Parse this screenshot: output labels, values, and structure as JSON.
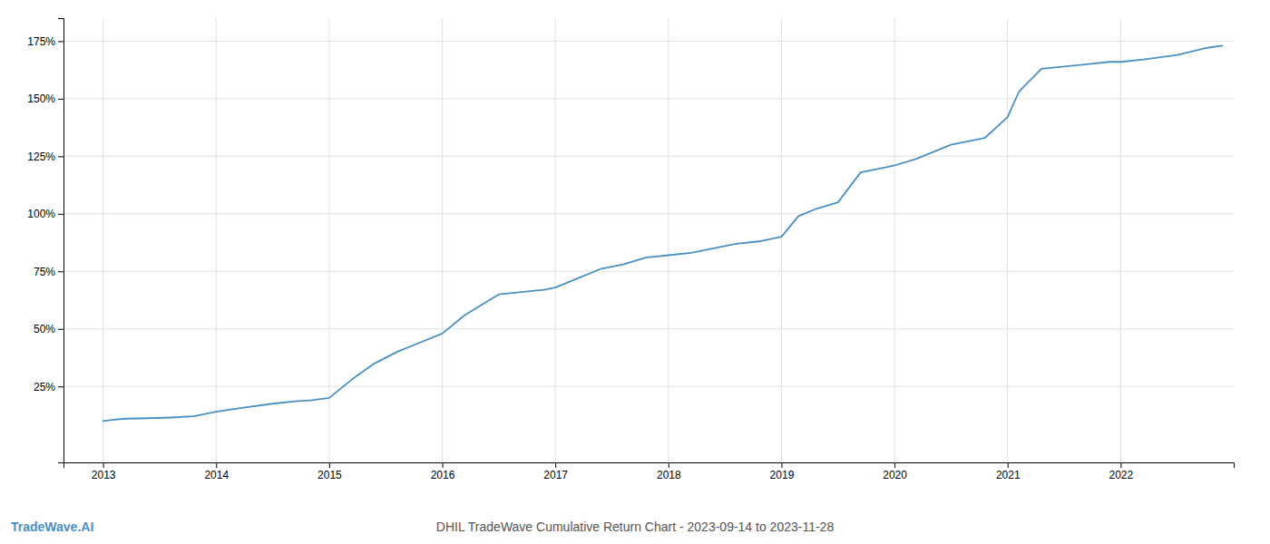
{
  "chart_data": {
    "type": "line",
    "title": "DHIL TradeWave Cumulative Return Chart - 2023-09-14 to 2023-11-28",
    "annotations": [
      "TradeWave.AI"
    ],
    "color": "#4a90c4",
    "x": [
      2013.0,
      2013.08,
      2013.2,
      2013.4,
      2013.6,
      2013.8,
      2014.0,
      2014.2,
      2014.5,
      2014.7,
      2014.85,
      2015.0,
      2015.2,
      2015.4,
      2015.6,
      2015.8,
      2016.0,
      2016.2,
      2016.4,
      2016.5,
      2016.7,
      2016.9,
      2017.0,
      2017.2,
      2017.4,
      2017.6,
      2017.8,
      2018.0,
      2018.2,
      2018.4,
      2018.6,
      2018.8,
      2019.0,
      2019.05,
      2019.15,
      2019.3,
      2019.5,
      2019.7,
      2019.9,
      2020.0,
      2020.2,
      2020.5,
      2020.8,
      2021.0,
      2021.1,
      2021.3,
      2021.5,
      2021.7,
      2021.9,
      2022.0,
      2022.2,
      2022.5,
      2022.75,
      2022.9
    ],
    "values": [
      10,
      10.5,
      11,
      11.2,
      11.5,
      12,
      14,
      15.5,
      17.5,
      18.5,
      19,
      20,
      28,
      35,
      40,
      44,
      48,
      56,
      62,
      65,
      66,
      67,
      68,
      72,
      76,
      78,
      81,
      82,
      83,
      85,
      87,
      88,
      90,
      93,
      99,
      102,
      105,
      118,
      120,
      121,
      124,
      130,
      133,
      142,
      153,
      163,
      164,
      165,
      166,
      166,
      167,
      169,
      172,
      173
    ],
    "xlim": [
      2012.65,
      2023.0
    ],
    "xticks": [
      2013,
      2014,
      2015,
      2016,
      2017,
      2018,
      2019,
      2020,
      2021,
      2022
    ],
    "ylim": [
      -8,
      185
    ],
    "yticks": [
      {
        "value": 25,
        "label": "25%"
      },
      {
        "value": 50,
        "label": "50%"
      },
      {
        "value": 75,
        "label": "75%"
      },
      {
        "value": 100,
        "label": "100%"
      },
      {
        "value": 125,
        "label": "125%"
      },
      {
        "value": 150,
        "label": "150%"
      },
      {
        "value": 175,
        "label": "175%"
      }
    ],
    "grid": true
  }
}
